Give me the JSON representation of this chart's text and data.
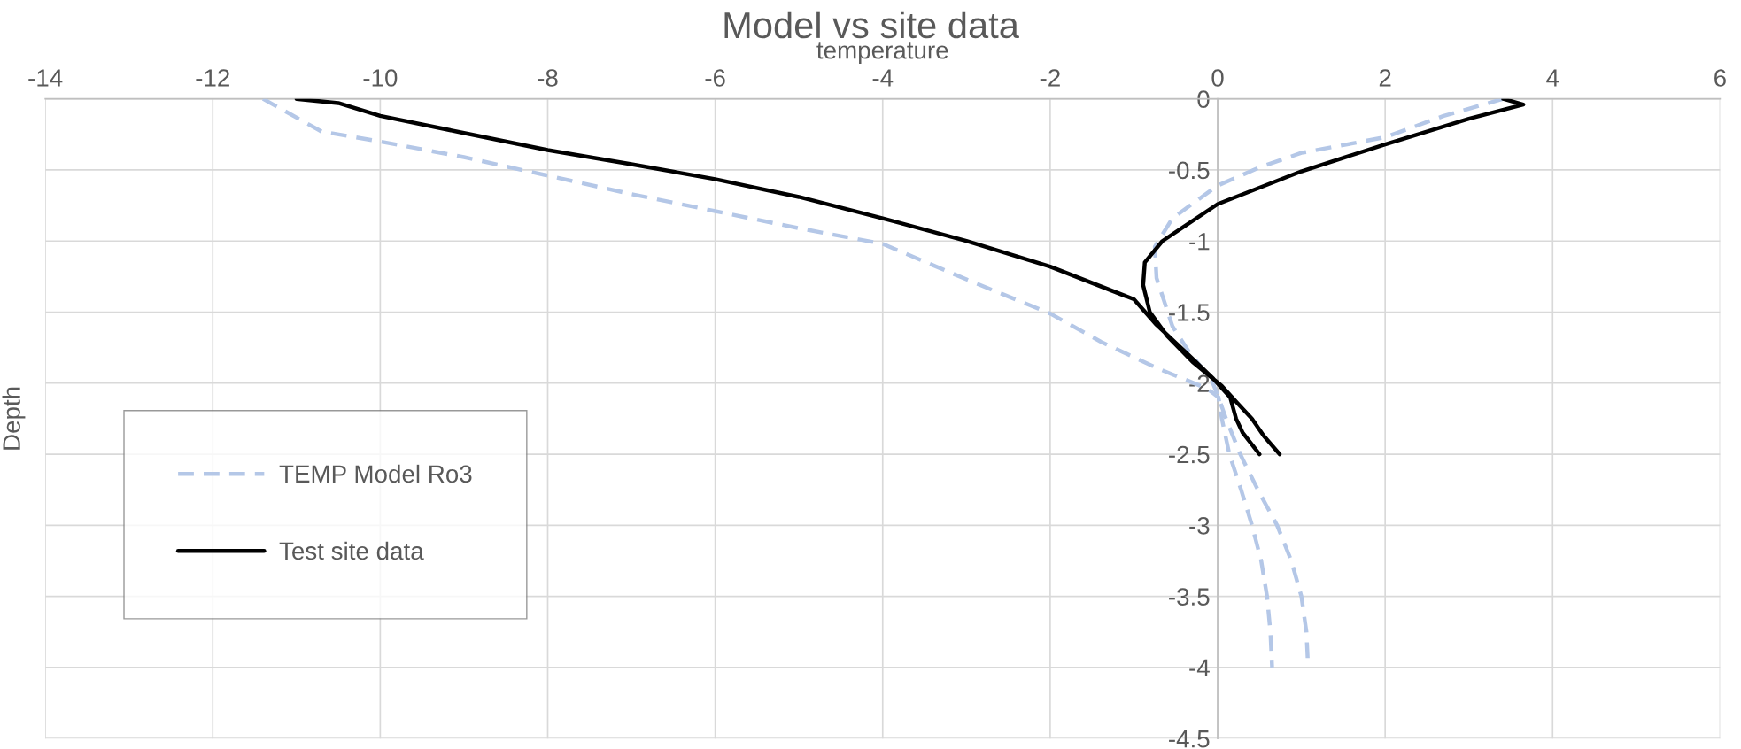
{
  "chart_data": {
    "type": "line",
    "title": "Model vs site data",
    "xlabel": "temperature",
    "ylabel": "Depth",
    "xlim": [
      -14,
      6
    ],
    "xticks": [
      -14,
      -12,
      -10,
      -8,
      -6,
      -4,
      -2,
      0,
      2,
      4,
      6
    ],
    "ylim": [
      -4.5,
      0
    ],
    "yticks": [
      -4.5,
      -4,
      -3.5,
      -3,
      -2.5,
      -2,
      -1.5,
      -1,
      -0.5,
      0
    ],
    "grid": true,
    "legend": "left",
    "series": [
      {
        "name": "TEMP Model Ro3",
        "color": "#b4c7e7",
        "line_style": "dashed",
        "x": [
          -11.4,
          -10.7,
          -10.0,
          -9.0,
          -8.0,
          -7.0,
          -6.0,
          -5.0,
          -4.0,
          -3.0,
          -2.0,
          -1.39,
          -0.7,
          -0.12,
          0.01,
          0.05,
          0.14,
          0.28,
          0.41,
          0.52,
          0.59,
          0.63,
          0.65,
          null,
          3.41,
          2.7,
          2.0,
          1.0,
          0.51,
          0.0,
          -0.54,
          -0.75,
          -0.73,
          -0.54,
          -0.33,
          -0.07,
          0.01,
          0.1,
          0.27,
          0.48,
          0.71,
          0.88,
          1.0,
          1.06,
          1.08
        ],
        "values": [
          0.0,
          -0.23,
          -0.3,
          -0.41,
          -0.54,
          -0.67,
          -0.79,
          -0.91,
          -1.02,
          -1.27,
          -1.51,
          -1.71,
          -1.9,
          -2.04,
          -2.1,
          -2.25,
          -2.5,
          -2.75,
          -3.0,
          -3.25,
          -3.5,
          -3.75,
          -4.0,
          null,
          0.0,
          -0.12,
          -0.27,
          -0.38,
          -0.48,
          -0.61,
          -0.84,
          -1.04,
          -1.26,
          -1.6,
          -1.79,
          -1.98,
          -2.1,
          -2.25,
          -2.5,
          -2.75,
          -3.0,
          -3.25,
          -3.5,
          -3.75,
          -4.0
        ]
      },
      {
        "name": "Test site data",
        "color": "#000000",
        "line_style": "solid",
        "x": [
          -11.0,
          -10.5,
          -10.0,
          -9.0,
          -8.0,
          -7.0,
          -6.0,
          -5.0,
          -4.0,
          -3.0,
          -2.0,
          -1.0,
          -0.73,
          -0.35,
          -0.05,
          0.15,
          0.22,
          0.3,
          0.5,
          null,
          3.41,
          3.65,
          3.0,
          2.0,
          1.0,
          0.0,
          -0.66,
          -0.87,
          -0.89,
          -0.81,
          -0.6,
          -0.3,
          0.05,
          0.25,
          0.41,
          0.55,
          0.74
        ],
        "values": [
          0.0,
          -0.03,
          -0.12,
          -0.24,
          -0.36,
          -0.46,
          -0.565,
          -0.69,
          -0.84,
          -1.0,
          -1.18,
          -1.41,
          -1.59,
          -1.8,
          -1.97,
          -2.1,
          -2.25,
          -2.35,
          -2.5,
          null,
          0.0,
          -0.04,
          -0.14,
          -0.32,
          -0.51,
          -0.74,
          -1.0,
          -1.15,
          -1.31,
          -1.5,
          -1.67,
          -1.85,
          -2.02,
          -2.15,
          -2.25,
          -2.37,
          -2.5
        ]
      }
    ]
  }
}
